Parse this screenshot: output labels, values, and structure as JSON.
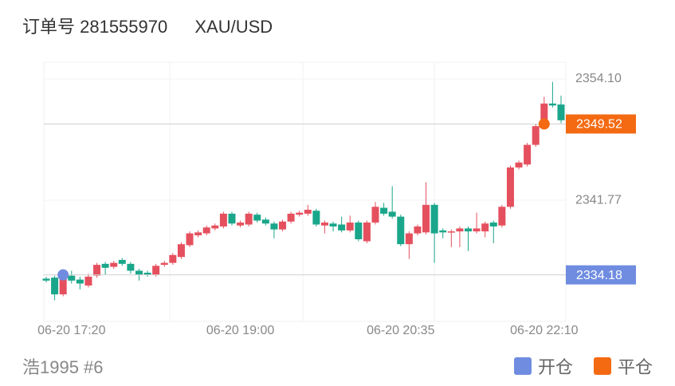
{
  "header": {
    "order": "订单号 281555970",
    "symbol": "XAU/USD"
  },
  "footer": {
    "account": "浩1995 #6"
  },
  "chart_data": {
    "type": "candlestick",
    "categories": [
      null,
      null,
      null,
      "06-20 17:20",
      null,
      null,
      null,
      null,
      null,
      null,
      null,
      null,
      null,
      null,
      null,
      null,
      null,
      null,
      null,
      null,
      null,
      null,
      null,
      "06-20 19:00",
      null,
      null,
      null,
      null,
      null,
      null,
      null,
      null,
      null,
      null,
      null,
      null,
      null,
      null,
      null,
      null,
      null,
      null,
      "06-20 20:35",
      null,
      null,
      null,
      null,
      null,
      null,
      null,
      null,
      null,
      null,
      null,
      null,
      null,
      null,
      null,
      null,
      "06-20 22:10",
      null,
      null
    ],
    "open": [
      2333.8,
      2333.9,
      2332.2,
      2334.1,
      2333.7,
      2333.1,
      2334.1,
      2335.3,
      2335.0,
      2335.7,
      2335.3,
      2334.6,
      2334.4,
      2334.2,
      2335.2,
      2335.4,
      2336.0,
      2337.2,
      2338.2,
      2338.4,
      2338.9,
      2339.1,
      2340.4,
      2339.2,
      2339.3,
      2340.3,
      2339.8,
      2339.4,
      2338.8,
      2339.6,
      2340.3,
      2340.4,
      2340.7,
      2339.2,
      2339.4,
      2339.3,
      2338.7,
      2339.5,
      2337.6,
      2339.5,
      2341.0,
      2340.6,
      2340.1,
      2337.3,
      2338.4,
      2338.5,
      2341.3,
      2338.7,
      2338.5,
      2338.6,
      2338.9,
      2338.6,
      2338.6,
      2339.5,
      2339.2,
      2341.1,
      2345.1,
      2345.4,
      2347.4,
      2349.3,
      2351.6,
      2351.5
    ],
    "high": [
      2334.0,
      2334.1,
      2334.5,
      2334.6,
      2334.0,
      2334.3,
      2335.4,
      2335.5,
      2335.6,
      2335.9,
      2335.5,
      2334.8,
      2334.6,
      2335.3,
      2335.6,
      2336.4,
      2337.5,
      2338.6,
      2338.7,
      2339.2,
      2339.4,
      2340.6,
      2340.6,
      2339.7,
      2340.6,
      2340.5,
      2340.0,
      2339.6,
      2339.8,
      2340.6,
      2340.7,
      2341.3,
      2340.9,
      2339.7,
      2339.6,
      2340.1,
      2340.2,
      2339.7,
      2339.7,
      2341.6,
      2341.5,
      2343.2,
      2340.3,
      2338.6,
      2339.3,
      2343.6,
      2341.5,
      2338.9,
      2338.8,
      2339.1,
      2339.1,
      2340.5,
      2339.6,
      2339.7,
      2341.3,
      2345.3,
      2345.8,
      2347.6,
      2349.5,
      2352.3,
      2353.8,
      2352.4
    ],
    "low": [
      2333.4,
      2331.6,
      2332.0,
      2333.3,
      2332.7,
      2332.9,
      2333.9,
      2334.2,
      2334.8,
      2335.1,
      2334.3,
      2333.6,
      2334.0,
      2334.0,
      2335.0,
      2335.2,
      2335.8,
      2337.0,
      2338.0,
      2338.2,
      2338.7,
      2338.9,
      2339.2,
      2339.0,
      2339.1,
      2339.5,
      2339.2,
      2337.9,
      2338.6,
      2339.4,
      2340.1,
      2340.2,
      2339.1,
      2338.4,
      2338.6,
      2338.5,
      2338.5,
      2337.6,
      2337.4,
      2339.3,
      2340.2,
      2339.9,
      2337.1,
      2335.8,
      2338.2,
      2338.3,
      2335.4,
      2337.9,
      2337.0,
      2337.0,
      2336.6,
      2338.4,
      2338.0,
      2337.4,
      2339.0,
      2340.9,
      2344.9,
      2345.2,
      2347.2,
      2349.1,
      2351.2,
      2349.6
    ],
    "close": [
      2333.6,
      2332.2,
      2334.2,
      2333.6,
      2333.3,
      2334.0,
      2335.2,
      2334.9,
      2335.4,
      2335.3,
      2334.6,
      2334.2,
      2334.2,
      2335.1,
      2335.4,
      2336.2,
      2337.3,
      2338.4,
      2338.5,
      2339.0,
      2339.2,
      2340.4,
      2339.4,
      2339.5,
      2340.4,
      2339.7,
      2339.4,
      2338.8,
      2339.6,
      2340.4,
      2340.5,
      2340.8,
      2339.3,
      2339.5,
      2339.1,
      2338.7,
      2339.5,
      2337.8,
      2339.5,
      2341.1,
      2340.4,
      2340.1,
      2337.3,
      2338.4,
      2339.1,
      2341.3,
      2338.4,
      2338.5,
      2338.6,
      2338.9,
      2338.6,
      2338.9,
      2339.4,
      2339.1,
      2341.1,
      2345.1,
      2345.6,
      2347.4,
      2349.3,
      2351.6,
      2351.4,
      2349.9
    ],
    "up_color": "#e5505e",
    "down_color": "#1aa68a",
    "ylim": [
      2329.45,
      2355.8
    ],
    "yticks": [
      {
        "value": 2354.1,
        "label": "2354.10"
      },
      2341.77
    ],
    "markers": [
      {
        "name": "开仓",
        "color": "#6f8ce0",
        "at": 2,
        "value": 2334.18
      },
      {
        "name": "平仓",
        "color": "#f46a12",
        "at": 59,
        "value": 2349.52
      }
    ]
  }
}
